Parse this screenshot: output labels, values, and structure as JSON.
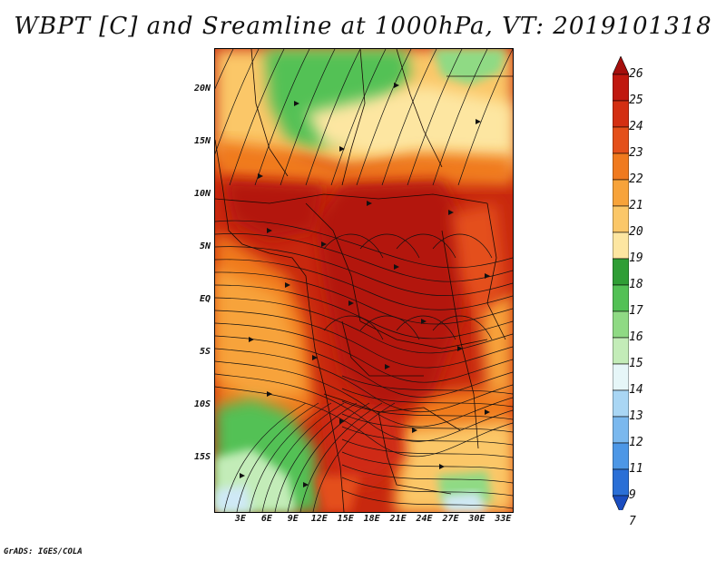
{
  "title": "WBPT [C] and Sreamline at 1000hPa, VT: 2019101318",
  "footer": "GrADS: IGES/COLA",
  "lat_labels": [
    "20N",
    "15N",
    "10N",
    "5N",
    "EQ",
    "5S",
    "10S",
    "15S"
  ],
  "lon_labels": [
    "3E",
    "6E",
    "9E",
    "12E",
    "15E",
    "18E",
    "21E",
    "24E",
    "27E",
    "30E",
    "33E"
  ],
  "colorbar": {
    "labels": [
      "26",
      "25",
      "24",
      "23",
      "22",
      "21",
      "20",
      "19",
      "18",
      "17",
      "16",
      "15",
      "14",
      "13",
      "12",
      "11",
      "9",
      "7"
    ],
    "colors": [
      "#a50f0d",
      "#c0180f",
      "#d32f12",
      "#e4501a",
      "#f07a1e",
      "#f7a33a",
      "#fbc768",
      "#fde6a1",
      "#2f9e35",
      "#53c155",
      "#8fda84",
      "#c3ecb8",
      "#e6f6f8",
      "#a9d6f4",
      "#7ab8ee",
      "#4d97e6",
      "#2a6fd6",
      "#1a4dc0"
    ]
  },
  "map": {
    "lon_range": [
      0,
      34
    ],
    "lat_range": [
      -20,
      24
    ],
    "palette": {
      "deep_red": "#b3160e",
      "red": "#cf2a12",
      "orange_red": "#e4501a",
      "orange": "#f07a1e",
      "light_orange": "#f7a33a",
      "tan": "#fbc768",
      "pale_yellow": "#fde6a1",
      "green": "#53c155",
      "light_green": "#8fda84",
      "pale_green": "#c3ecb8",
      "pale_blue": "#cfe9f6"
    }
  }
}
